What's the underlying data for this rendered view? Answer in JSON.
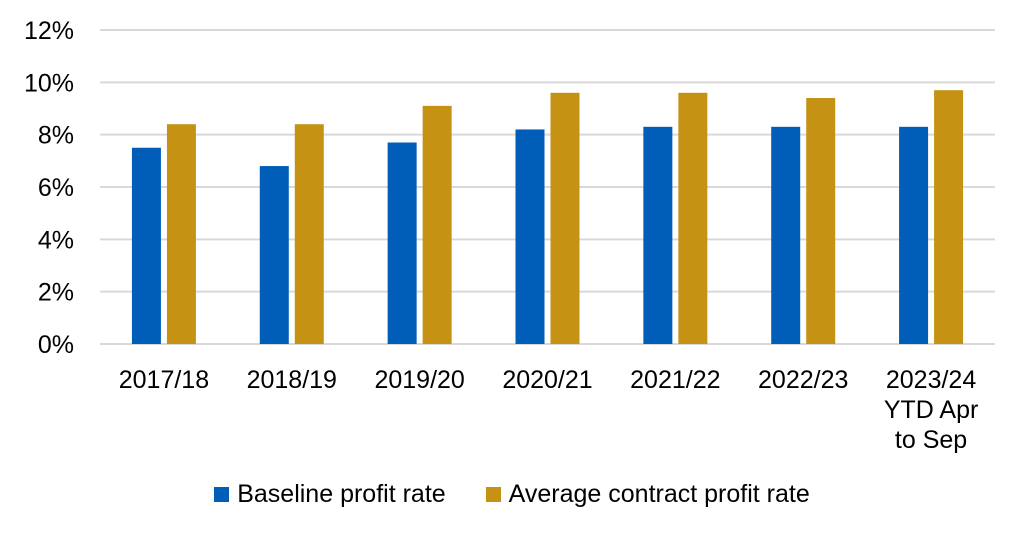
{
  "chart_data": {
    "type": "bar",
    "title": "",
    "xlabel": "",
    "ylabel": "",
    "ylim": [
      0,
      12
    ],
    "yticks": [
      "0%",
      "2%",
      "4%",
      "6%",
      "8%",
      "10%",
      "12%"
    ],
    "ytick_values": [
      0,
      2,
      4,
      6,
      8,
      10,
      12
    ],
    "grid": true,
    "legend_position": "bottom",
    "categories": [
      [
        "2017/18"
      ],
      [
        "2018/19"
      ],
      [
        "2019/20"
      ],
      [
        "2020/21"
      ],
      [
        "2021/22"
      ],
      [
        "2022/23"
      ],
      [
        "2023/24",
        "YTD Apr",
        "to Sep"
      ]
    ],
    "series": [
      {
        "name": "Baseline profit rate",
        "color": "#005EB8",
        "values": [
          7.5,
          6.8,
          7.7,
          8.2,
          8.3,
          8.3,
          8.3
        ]
      },
      {
        "name": "Average contract profit rate",
        "color": "#C59214",
        "values": [
          8.4,
          8.4,
          9.1,
          9.6,
          9.6,
          9.4,
          9.7
        ]
      }
    ]
  }
}
